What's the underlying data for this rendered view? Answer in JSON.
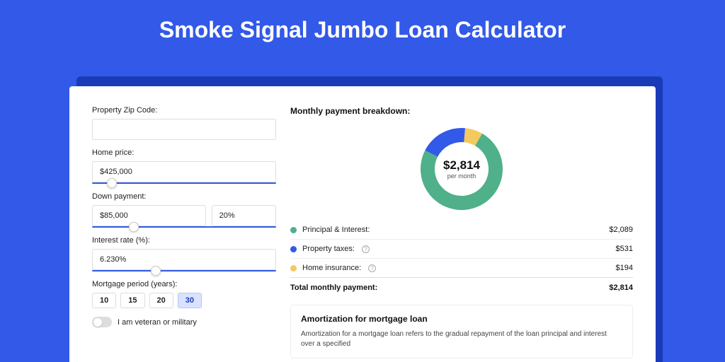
{
  "page": {
    "title": "Smoke Signal Jumbo Loan Calculator",
    "bg_color": "#3259e8",
    "card_shadow_color": "#1a3bb8"
  },
  "form": {
    "zip": {
      "label": "Property Zip Code:",
      "value": ""
    },
    "home_price": {
      "label": "Home price:",
      "value": "$425,000",
      "slider_pct": 8
    },
    "down_payment": {
      "label": "Down payment:",
      "amount": "$85,000",
      "percent": "20%",
      "slider_pct": 20
    },
    "interest_rate": {
      "label": "Interest rate (%):",
      "value": "6.230%",
      "slider_pct": 32
    },
    "mortgage_period": {
      "label": "Mortgage period (years):",
      "options": [
        "10",
        "15",
        "20",
        "30"
      ],
      "selected": "30"
    },
    "veteran": {
      "label": "I am veteran or military",
      "checked": false
    }
  },
  "breakdown": {
    "title": "Monthly payment breakdown:",
    "donut": {
      "amount": "$2,814",
      "sub": "per month",
      "segments": [
        {
          "key": "principal_interest",
          "value": 2089,
          "color": "#4fb08a",
          "start_angle": 30,
          "sweep": 267
        },
        {
          "key": "property_taxes",
          "value": 531,
          "color": "#3259e8",
          "start_angle": 297,
          "sweep": 68
        },
        {
          "key": "home_insurance",
          "value": 194,
          "color": "#f4c95d",
          "start_angle": 5,
          "sweep": 25
        }
      ],
      "thickness": 20
    },
    "items": [
      {
        "label": "Principal & Interest:",
        "value": "$2,089",
        "color": "#4fb08a",
        "info": false
      },
      {
        "label": "Property taxes:",
        "value": "$531",
        "color": "#3259e8",
        "info": true
      },
      {
        "label": "Home insurance:",
        "value": "$194",
        "color": "#f4c95d",
        "info": true
      }
    ],
    "total": {
      "label": "Total monthly payment:",
      "value": "$2,814"
    }
  },
  "amortization": {
    "title": "Amortization for mortgage loan",
    "text": "Amortization for a mortgage loan refers to the gradual repayment of the loan principal and interest over a specified"
  }
}
